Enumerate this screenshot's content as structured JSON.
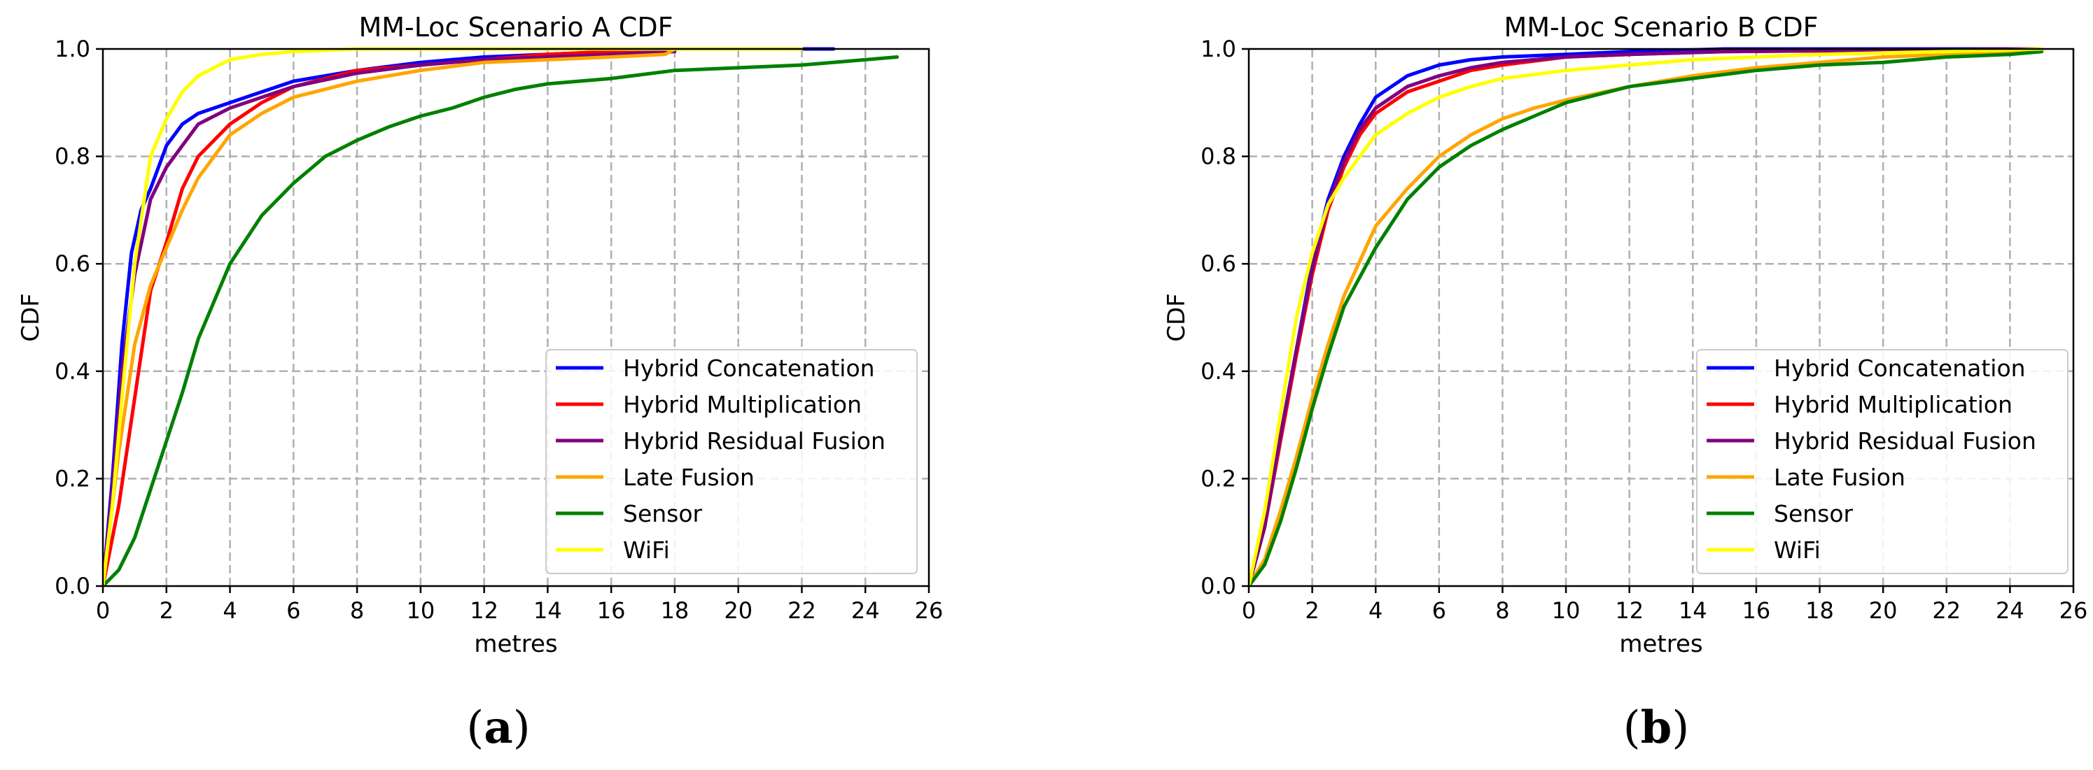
{
  "chart_data": [
    {
      "type": "line",
      "panel_label_open": "(",
      "panel_label_letter": "a",
      "panel_label_close": ")",
      "title": "MM-Loc Scenario A CDF",
      "xlabel": "metres",
      "ylabel": "CDF",
      "xlim": [
        0,
        26
      ],
      "ylim": [
        0,
        1.0
      ],
      "xticks": [
        0,
        2,
        4,
        6,
        8,
        10,
        12,
        14,
        16,
        18,
        20,
        22,
        24,
        26
      ],
      "yticks": [
        0.0,
        0.2,
        0.4,
        0.6,
        0.8,
        1.0
      ],
      "grid": true,
      "legend_position": "lower-right",
      "series": [
        {
          "name": "Hybrid Concatenation",
          "color": "#0000ff",
          "points": [
            [
              0,
              0
            ],
            [
              0.3,
              0.2
            ],
            [
              0.6,
              0.45
            ],
            [
              0.9,
              0.62
            ],
            [
              1.2,
              0.7
            ],
            [
              1.5,
              0.74
            ],
            [
              2,
              0.82
            ],
            [
              2.5,
              0.86
            ],
            [
              3,
              0.88
            ],
            [
              4,
              0.9
            ],
            [
              5,
              0.92
            ],
            [
              6,
              0.94
            ],
            [
              8,
              0.96
            ],
            [
              10,
              0.975
            ],
            [
              12,
              0.985
            ],
            [
              14,
              0.99
            ],
            [
              16,
              0.995
            ],
            [
              18,
              1.0
            ],
            [
              23,
              1.0
            ]
          ]
        },
        {
          "name": "Hybrid Multiplication",
          "color": "#ff0000",
          "points": [
            [
              0,
              0
            ],
            [
              0.5,
              0.15
            ],
            [
              1,
              0.35
            ],
            [
              1.5,
              0.55
            ],
            [
              2,
              0.64
            ],
            [
              2.5,
              0.74
            ],
            [
              3,
              0.8
            ],
            [
              4,
              0.86
            ],
            [
              5,
              0.9
            ],
            [
              6,
              0.93
            ],
            [
              8,
              0.96
            ],
            [
              10,
              0.97
            ],
            [
              12,
              0.98
            ],
            [
              14,
              0.99
            ],
            [
              16,
              0.995
            ],
            [
              18,
              1.0
            ],
            [
              22,
              1.0
            ]
          ]
        },
        {
          "name": "Hybrid Residual Fusion",
          "color": "#800080",
          "points": [
            [
              0,
              0
            ],
            [
              0.3,
              0.18
            ],
            [
              0.6,
              0.4
            ],
            [
              1,
              0.58
            ],
            [
              1.5,
              0.72
            ],
            [
              2,
              0.78
            ],
            [
              2.5,
              0.82
            ],
            [
              3,
              0.86
            ],
            [
              4,
              0.89
            ],
            [
              5,
              0.91
            ],
            [
              6,
              0.93
            ],
            [
              8,
              0.955
            ],
            [
              10,
              0.97
            ],
            [
              12,
              0.98
            ],
            [
              14,
              0.985
            ],
            [
              16,
              0.99
            ],
            [
              18,
              0.995
            ]
          ]
        },
        {
          "name": "Late Fusion",
          "color": "#ffa500",
          "points": [
            [
              0,
              0
            ],
            [
              0.5,
              0.25
            ],
            [
              1,
              0.45
            ],
            [
              1.5,
              0.56
            ],
            [
              2,
              0.63
            ],
            [
              2.5,
              0.7
            ],
            [
              3,
              0.76
            ],
            [
              4,
              0.84
            ],
            [
              5,
              0.88
            ],
            [
              6,
              0.91
            ],
            [
              8,
              0.94
            ],
            [
              10,
              0.96
            ],
            [
              12,
              0.975
            ],
            [
              14,
              0.98
            ],
            [
              16,
              0.985
            ],
            [
              17.7,
              0.99
            ],
            [
              18,
              1.0
            ]
          ]
        },
        {
          "name": "Sensor",
          "color": "#008000",
          "points": [
            [
              0,
              0
            ],
            [
              0.5,
              0.03
            ],
            [
              1,
              0.09
            ],
            [
              1.5,
              0.18
            ],
            [
              2,
              0.27
            ],
            [
              2.5,
              0.36
            ],
            [
              3,
              0.46
            ],
            [
              4,
              0.6
            ],
            [
              5,
              0.69
            ],
            [
              6,
              0.75
            ],
            [
              7,
              0.8
            ],
            [
              8,
              0.83
            ],
            [
              9,
              0.855
            ],
            [
              10,
              0.875
            ],
            [
              11,
              0.89
            ],
            [
              12,
              0.91
            ],
            [
              13,
              0.925
            ],
            [
              14,
              0.935
            ],
            [
              16,
              0.945
            ],
            [
              18,
              0.96
            ],
            [
              20,
              0.965
            ],
            [
              22,
              0.97
            ],
            [
              24,
              0.98
            ],
            [
              25,
              0.985
            ]
          ]
        },
        {
          "name": "WiFi",
          "color": "#ffff00",
          "points": [
            [
              0,
              0
            ],
            [
              0.3,
              0.15
            ],
            [
              0.6,
              0.35
            ],
            [
              1,
              0.6
            ],
            [
              1.5,
              0.8
            ],
            [
              2,
              0.87
            ],
            [
              2.5,
              0.92
            ],
            [
              3,
              0.95
            ],
            [
              4,
              0.98
            ],
            [
              5,
              0.99
            ],
            [
              6,
              0.995
            ],
            [
              8,
              1.0
            ],
            [
              22,
              1.0
            ]
          ]
        }
      ]
    },
    {
      "type": "line",
      "panel_label_open": "(",
      "panel_label_letter": "b",
      "panel_label_close": ")",
      "title": "MM-Loc Scenario B CDF",
      "xlabel": "metres",
      "ylabel": "CDF",
      "xlim": [
        0,
        26
      ],
      "ylim": [
        0,
        1.0
      ],
      "xticks": [
        0,
        2,
        4,
        6,
        8,
        10,
        12,
        14,
        16,
        18,
        20,
        22,
        24,
        26
      ],
      "yticks": [
        0.0,
        0.2,
        0.4,
        0.6,
        0.8,
        1.0
      ],
      "grid": true,
      "legend_position": "lower-right",
      "series": [
        {
          "name": "Hybrid Concatenation",
          "color": "#0000ff",
          "points": [
            [
              0,
              0
            ],
            [
              0.5,
              0.12
            ],
            [
              1,
              0.28
            ],
            [
              1.5,
              0.44
            ],
            [
              2,
              0.6
            ],
            [
              2.5,
              0.72
            ],
            [
              3,
              0.8
            ],
            [
              3.5,
              0.86
            ],
            [
              4,
              0.91
            ],
            [
              5,
              0.95
            ],
            [
              6,
              0.97
            ],
            [
              7,
              0.98
            ],
            [
              8,
              0.985
            ],
            [
              10,
              0.99
            ],
            [
              12,
              0.995
            ],
            [
              15,
              1.0
            ],
            [
              25,
              1.0
            ]
          ]
        },
        {
          "name": "Hybrid Multiplication",
          "color": "#ff0000",
          "points": [
            [
              0,
              0
            ],
            [
              0.5,
              0.11
            ],
            [
              1,
              0.27
            ],
            [
              1.5,
              0.43
            ],
            [
              2,
              0.58
            ],
            [
              2.5,
              0.7
            ],
            [
              3,
              0.78
            ],
            [
              3.5,
              0.84
            ],
            [
              4,
              0.88
            ],
            [
              5,
              0.92
            ],
            [
              6,
              0.94
            ],
            [
              7,
              0.96
            ],
            [
              8,
              0.97
            ],
            [
              10,
              0.985
            ],
            [
              12,
              0.99
            ],
            [
              15,
              0.995
            ],
            [
              25,
              1.0
            ]
          ]
        },
        {
          "name": "Hybrid Residual Fusion",
          "color": "#800080",
          "points": [
            [
              0,
              0
            ],
            [
              0.5,
              0.11
            ],
            [
              1,
              0.28
            ],
            [
              1.5,
              0.44
            ],
            [
              2,
              0.59
            ],
            [
              2.5,
              0.71
            ],
            [
              3,
              0.79
            ],
            [
              3.5,
              0.85
            ],
            [
              4,
              0.89
            ],
            [
              5,
              0.93
            ],
            [
              6,
              0.95
            ],
            [
              7,
              0.965
            ],
            [
              8,
              0.975
            ],
            [
              10,
              0.985
            ],
            [
              12,
              0.99
            ],
            [
              15,
              0.995
            ],
            [
              25,
              1.0
            ]
          ]
        },
        {
          "name": "Late Fusion",
          "color": "#ffa500",
          "points": [
            [
              0,
              0
            ],
            [
              0.5,
              0.05
            ],
            [
              1,
              0.14
            ],
            [
              1.5,
              0.24
            ],
            [
              2,
              0.35
            ],
            [
              2.5,
              0.45
            ],
            [
              3,
              0.54
            ],
            [
              4,
              0.67
            ],
            [
              5,
              0.74
            ],
            [
              6,
              0.8
            ],
            [
              7,
              0.84
            ],
            [
              8,
              0.87
            ],
            [
              9,
              0.89
            ],
            [
              10,
              0.905
            ],
            [
              12,
              0.93
            ],
            [
              14,
              0.95
            ],
            [
              16,
              0.965
            ],
            [
              18,
              0.975
            ],
            [
              20,
              0.985
            ],
            [
              22,
              0.99
            ],
            [
              24,
              0.995
            ],
            [
              25,
              1.0
            ]
          ]
        },
        {
          "name": "Sensor",
          "color": "#008000",
          "points": [
            [
              0,
              0
            ],
            [
              0.5,
              0.04
            ],
            [
              1,
              0.12
            ],
            [
              1.5,
              0.22
            ],
            [
              2,
              0.33
            ],
            [
              2.5,
              0.43
            ],
            [
              3,
              0.52
            ],
            [
              4,
              0.63
            ],
            [
              5,
              0.72
            ],
            [
              6,
              0.78
            ],
            [
              7,
              0.82
            ],
            [
              8,
              0.85
            ],
            [
              9,
              0.875
            ],
            [
              10,
              0.9
            ],
            [
              12,
              0.93
            ],
            [
              14,
              0.945
            ],
            [
              16,
              0.96
            ],
            [
              18,
              0.97
            ],
            [
              20,
              0.975
            ],
            [
              22,
              0.985
            ],
            [
              24,
              0.99
            ],
            [
              25,
              0.995
            ]
          ]
        },
        {
          "name": "WiFi",
          "color": "#ffff00",
          "points": [
            [
              0,
              0
            ],
            [
              0.5,
              0.14
            ],
            [
              1,
              0.32
            ],
            [
              1.5,
              0.5
            ],
            [
              2,
              0.62
            ],
            [
              2.5,
              0.71
            ],
            [
              3,
              0.76
            ],
            [
              3.5,
              0.8
            ],
            [
              4,
              0.84
            ],
            [
              5,
              0.88
            ],
            [
              6,
              0.91
            ],
            [
              7,
              0.93
            ],
            [
              8,
              0.945
            ],
            [
              10,
              0.96
            ],
            [
              12,
              0.97
            ],
            [
              14,
              0.98
            ],
            [
              16,
              0.985
            ],
            [
              18,
              0.99
            ],
            [
              22,
              0.995
            ],
            [
              25,
              1.0
            ]
          ]
        }
      ]
    }
  ]
}
